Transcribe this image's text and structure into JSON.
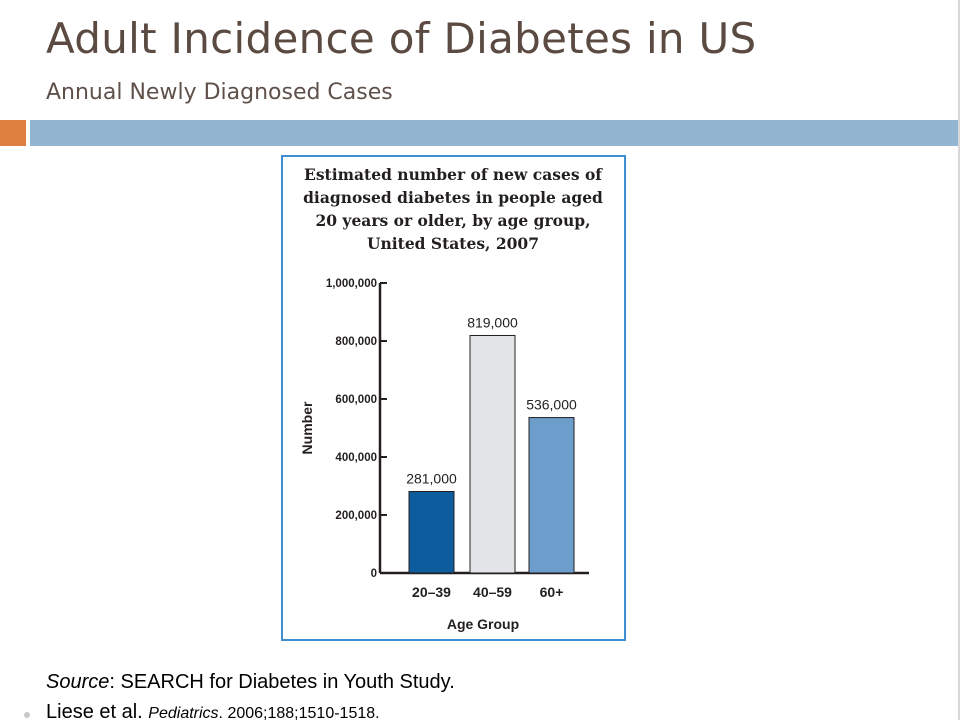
{
  "slide": {
    "title": "Adult Incidence of Diabetes in US",
    "subtitle": "Annual Newly Diagnosed Cases",
    "source_label": "Source",
    "source_text": ": SEARCH for Diabetes in Youth Study.",
    "citation_authors": "Liese et al.",
    "citation_journal": "Pediatrics",
    "citation_details": ". 2006;188;1510-1518."
  },
  "colors": {
    "title_text": "#5a4a41",
    "accent_orange": "#de7f3f",
    "header_bar": "#94b5d2",
    "chart_border": "#3f8fd0"
  },
  "chart_data": {
    "type": "bar",
    "title_lines": [
      "Estimated number of new cases of",
      "diagnosed diabetes in people aged",
      "20 years or older, by age group,",
      "United States, 2007"
    ],
    "xlabel": "Age Group",
    "ylabel": "Number",
    "categories": [
      "20–39",
      "40–59",
      "60+"
    ],
    "values": [
      281000,
      819000,
      536000
    ],
    "value_labels": [
      "281,000",
      "819,000",
      "536,000"
    ],
    "bar_colors": [
      "#0d5c9e",
      "#e3e5e8",
      "#6c9dcb"
    ],
    "ylim": [
      0,
      1000000
    ],
    "yticks": [
      0,
      200000,
      400000,
      600000,
      800000,
      1000000
    ],
    "ytick_labels": [
      "0",
      "200,000",
      "400,000",
      "600,000",
      "800,000",
      "1,000,000"
    ],
    "grid": false,
    "legend": "none"
  }
}
